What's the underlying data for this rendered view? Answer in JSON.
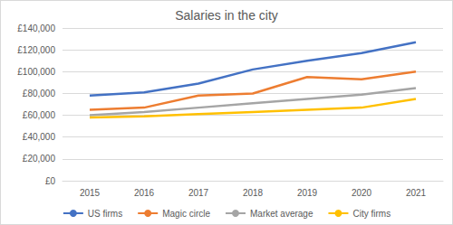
{
  "chart_data": {
    "type": "line",
    "title": "Salaries in the city",
    "categories": [
      "2015",
      "2016",
      "2017",
      "2018",
      "2019",
      "2020",
      "2021"
    ],
    "series": [
      {
        "name": "US firms",
        "color": "#4472c4",
        "values": [
          78000,
          81000,
          89000,
          102000,
          110000,
          117000,
          127000
        ]
      },
      {
        "name": "Magic circle",
        "color": "#ed7d31",
        "values": [
          65000,
          67000,
          78000,
          80000,
          95000,
          93000,
          100000
        ]
      },
      {
        "name": "Market average",
        "color": "#a5a5a5",
        "values": [
          60000,
          63000,
          67000,
          71000,
          75000,
          79000,
          85000
        ]
      },
      {
        "name": "City firms",
        "color": "#ffc000",
        "values": [
          58000,
          59000,
          61000,
          63000,
          65000,
          67000,
          75000
        ]
      }
    ],
    "ylim": [
      0,
      140000
    ],
    "yticks": [
      {
        "value": 0,
        "label": "£0"
      },
      {
        "value": 20000,
        "label": "£20,000"
      },
      {
        "value": 40000,
        "label": "£40,000"
      },
      {
        "value": 60000,
        "label": "£60,000"
      },
      {
        "value": 80000,
        "label": "£80,000"
      },
      {
        "value": 100000,
        "label": "£100,000"
      },
      {
        "value": 120000,
        "label": "£120,000"
      },
      {
        "value": 140000,
        "label": "£140,000"
      }
    ],
    "grid": true,
    "legend": "bottom"
  }
}
